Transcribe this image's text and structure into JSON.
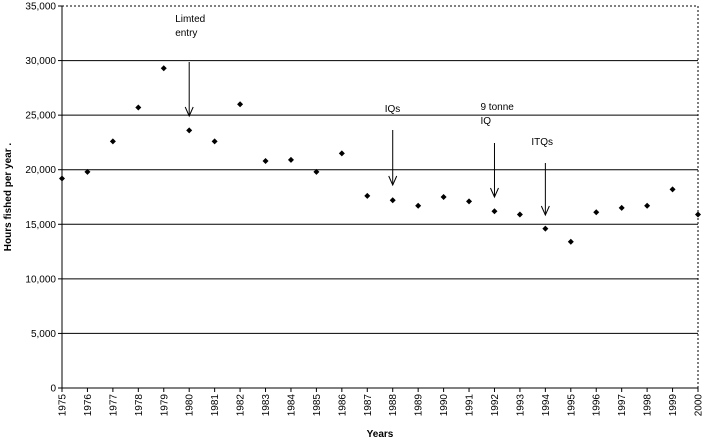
{
  "chart_data": {
    "type": "scatter",
    "xlabel": "Years",
    "ylabel": "Hours fished per year .",
    "ylim": [
      0,
      35000
    ],
    "yticks": [
      0,
      5000,
      10000,
      15000,
      20000,
      25000,
      30000,
      35000
    ],
    "ytick_labels": [
      "0",
      "5,000",
      "10,000",
      "15,000",
      "20,000",
      "25,000",
      "30,000",
      "35,000"
    ],
    "grid": "horizontal",
    "marker_color": "#000000",
    "x": [
      "1975",
      "1976",
      "1977",
      "1978",
      "1979",
      "1980",
      "1981",
      "1982",
      "1983",
      "1984",
      "1985",
      "1986",
      "1987",
      "1988",
      "1989",
      "1990",
      "1991",
      "1992",
      "1993",
      "1994",
      "1995",
      "1996",
      "1997",
      "1998",
      "1999",
      "2000"
    ],
    "y": [
      19200,
      19800,
      22600,
      25700,
      29300,
      23600,
      22600,
      26000,
      20800,
      20900,
      19800,
      21500,
      17600,
      17200,
      16700,
      17500,
      17100,
      16200,
      15900,
      14600,
      13400,
      16100,
      16500,
      16700,
      18200,
      15900
    ],
    "annotations": [
      {
        "lines": [
          "Limted",
          "entry"
        ],
        "x": "1980"
      },
      {
        "lines": [
          "IQs"
        ],
        "x": "1988"
      },
      {
        "lines": [
          "9 tonne",
          "IQ"
        ],
        "x": "1992"
      },
      {
        "lines": [
          "ITQs"
        ],
        "x": "1994"
      }
    ]
  }
}
